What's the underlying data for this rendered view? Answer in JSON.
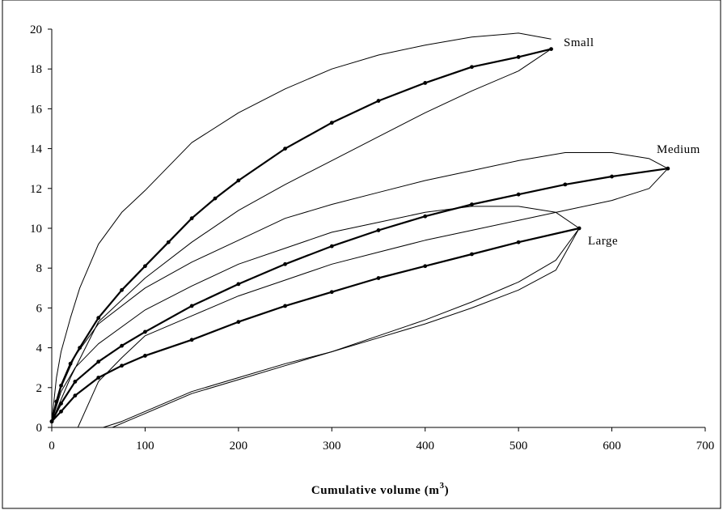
{
  "chart_data": {
    "type": "line",
    "title": "",
    "xlabel": "Cumulative volume (m",
    "xlabel_superscript": "3",
    "xlabel_suffix": ")",
    "ylabel": "",
    "xlim": [
      0,
      700
    ],
    "ylim": [
      0,
      20
    ],
    "x_ticks": [
      "0",
      "100",
      "200",
      "300",
      "400",
      "500",
      "600",
      "700"
    ],
    "y_ticks": [
      "0",
      "2",
      "4",
      "6",
      "8",
      "10",
      "12",
      "14",
      "16",
      "18",
      "20"
    ],
    "grid": false,
    "legend": "none",
    "series": [
      {
        "name": "Small",
        "role": "mean",
        "x": [
          0,
          5,
          10,
          20,
          30,
          50,
          75,
          100,
          125,
          150,
          175,
          200,
          250,
          300,
          350,
          400,
          450,
          500,
          535
        ],
        "y": [
          0.3,
          1.3,
          2.1,
          3.2,
          4.0,
          5.5,
          6.9,
          8.1,
          9.3,
          10.5,
          11.5,
          12.4,
          14.0,
          15.3,
          16.4,
          17.3,
          18.1,
          18.6,
          19.0
        ]
      },
      {
        "name": "Small",
        "role": "upper bound",
        "x": [
          0,
          5,
          10,
          20,
          30,
          50,
          75,
          100,
          150,
          200,
          250,
          300,
          350,
          400,
          450,
          500,
          535
        ],
        "y": [
          0.3,
          2.5,
          3.8,
          5.5,
          7.0,
          9.2,
          10.8,
          11.9,
          14.3,
          15.8,
          17.0,
          18.0,
          18.7,
          19.2,
          19.6,
          19.8,
          19.5
        ]
      },
      {
        "name": "Small",
        "role": "lower bound",
        "x": [
          0,
          20,
          50,
          100,
          150,
          200,
          250,
          300,
          350,
          400,
          450,
          500,
          535
        ],
        "y": [
          0.3,
          2.5,
          5.3,
          7.5,
          9.3,
          10.9,
          12.2,
          13.4,
          14.6,
          15.8,
          16.9,
          17.9,
          19.0
        ]
      },
      {
        "name": "Medium",
        "role": "mean",
        "x": [
          0,
          10,
          25,
          50,
          75,
          100,
          150,
          200,
          250,
          300,
          350,
          400,
          450,
          500,
          550,
          600,
          660
        ],
        "y": [
          0.3,
          1.2,
          2.3,
          3.3,
          4.1,
          4.8,
          6.1,
          7.2,
          8.2,
          9.1,
          9.9,
          10.6,
          11.2,
          11.7,
          12.2,
          12.6,
          13.0
        ]
      },
      {
        "name": "Medium",
        "role": "upper bound",
        "x": [
          0,
          10,
          25,
          50,
          100,
          150,
          200,
          250,
          300,
          350,
          400,
          450,
          500,
          550,
          600,
          640,
          660
        ],
        "y": [
          0.3,
          2.0,
          3.6,
          5.2,
          7.0,
          8.3,
          9.4,
          10.5,
          11.2,
          11.8,
          12.4,
          12.9,
          13.4,
          13.8,
          13.8,
          13.5,
          13.0
        ]
      },
      {
        "name": "Medium",
        "role": "lower bound",
        "x": [
          28,
          50,
          75,
          100,
          150,
          200,
          250,
          300,
          350,
          400,
          450,
          500,
          550,
          600,
          640,
          660
        ],
        "y": [
          0.0,
          2.3,
          3.5,
          4.6,
          5.6,
          6.6,
          7.4,
          8.2,
          8.8,
          9.4,
          9.9,
          10.4,
          10.9,
          11.4,
          12.0,
          13.0
        ]
      },
      {
        "name": "Large",
        "role": "mean",
        "x": [
          0,
          10,
          25,
          50,
          75,
          100,
          150,
          200,
          250,
          300,
          350,
          400,
          450,
          500,
          565
        ],
        "y": [
          0.3,
          0.8,
          1.6,
          2.5,
          3.1,
          3.6,
          4.4,
          5.3,
          6.1,
          6.8,
          7.5,
          8.1,
          8.7,
          9.3,
          10.0
        ]
      },
      {
        "name": "Large",
        "role": "upper bound",
        "x": [
          0,
          10,
          25,
          50,
          100,
          150,
          200,
          250,
          300,
          350,
          400,
          450,
          500,
          540,
          565
        ],
        "y": [
          0.3,
          1.8,
          3.0,
          4.2,
          5.9,
          7.1,
          8.2,
          9.0,
          9.8,
          10.3,
          10.8,
          11.1,
          11.1,
          10.8,
          10.0
        ]
      },
      {
        "name": "Large",
        "role": "lower bound",
        "x": [
          55,
          75,
          100,
          150,
          200,
          250,
          300,
          350,
          400,
          450,
          500,
          540,
          565
        ],
        "y": [
          0.0,
          0.3,
          0.8,
          1.8,
          2.5,
          3.2,
          3.8,
          4.5,
          5.2,
          6.0,
          6.9,
          7.9,
          10.0
        ]
      },
      {
        "name": "Large",
        "role": "lower bound 2",
        "x": [
          65,
          80,
          100,
          150,
          200,
          250,
          300,
          350,
          400,
          450,
          500,
          540,
          565
        ],
        "y": [
          0.0,
          0.3,
          0.7,
          1.7,
          2.4,
          3.1,
          3.8,
          4.6,
          5.4,
          6.3,
          7.3,
          8.4,
          10.0
        ]
      }
    ],
    "annotations": [
      "Small",
      "Medium",
      "Large"
    ]
  }
}
